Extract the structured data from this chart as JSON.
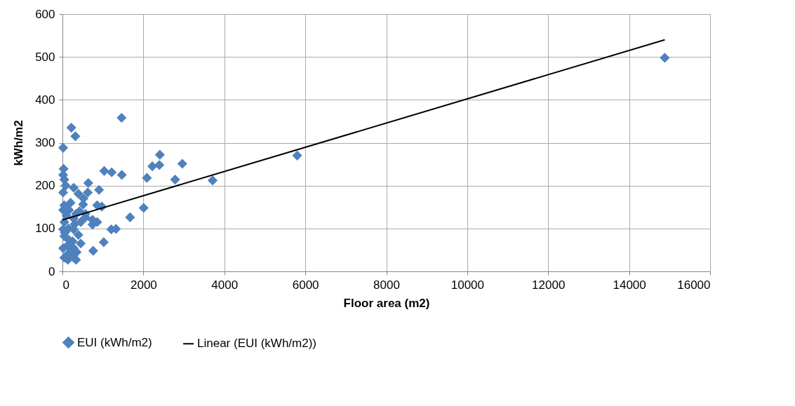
{
  "chart_data": {
    "type": "scatter",
    "xlabel": "Floor area (m2)",
    "ylabel": "kWh/m2",
    "xlim": [
      0,
      16000
    ],
    "xticks": [
      0,
      2000,
      4000,
      6000,
      8000,
      10000,
      12000,
      14000,
      16000
    ],
    "ylim": [
      0,
      600
    ],
    "yticks": [
      0,
      100,
      200,
      300,
      400,
      500,
      600
    ],
    "grid": true,
    "legend": "bottom",
    "series": [
      {
        "name": "EUI (kWh/m2)",
        "type": "scatter",
        "marker": "diamond",
        "color": "#4f81bd",
        "x": [
          14880,
          5800,
          1461,
          220,
          319,
          17,
          29,
          17,
          46,
          1032,
          1217,
          1467,
          2406,
          2220,
          2394,
          2962,
          2087,
          2783,
          3710,
          638,
          904,
          278,
          17,
          394,
          626,
          510,
          858,
          46,
          974,
          162,
          336,
          568,
          17,
          2006,
          1670,
          46,
          452,
          742,
          858,
          278,
          1206,
          1322,
          17,
          278,
          46,
          394,
          162,
          452,
          1020,
          17,
          278,
          162,
          759,
          133,
          336,
          278,
          46,
          568,
          742,
          200,
          100,
          300,
          60,
          150,
          250,
          120,
          420,
          520,
          80,
          350
        ],
        "values": [
          498,
          270,
          358,
          335,
          315,
          288,
          239,
          225,
          214,
          234,
          231,
          225,
          272,
          245,
          248,
          251,
          218,
          214,
          212,
          206,
          190,
          195,
          184,
          181,
          184,
          156,
          154,
          154,
          151,
          143,
          134,
          134,
          143,
          148,
          126,
          115,
          115,
          109,
          115,
          123,
          98,
          99,
          98,
          98,
          82,
          85,
          73,
          65,
          68,
          54,
          54,
          43,
          48,
          27,
          27,
          32,
          32,
          126,
          120,
          160,
          130,
          110,
          90,
          100,
          70,
          60,
          140,
          170,
          200,
          45
        ]
      },
      {
        "name": "Linear (EUI (kWh/m2))",
        "type": "line",
        "color": "#000000",
        "x": [
          0,
          14880
        ],
        "values": [
          120,
          540
        ]
      }
    ]
  }
}
